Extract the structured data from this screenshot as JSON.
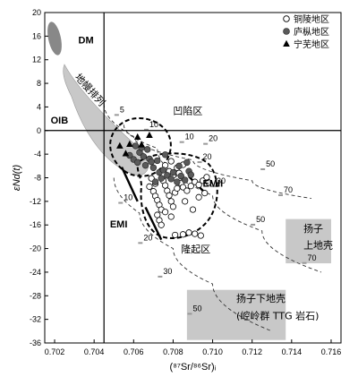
{
  "chart_data": {
    "type": "scatter",
    "xlabel": "(⁸⁷Sr/⁸⁶Sr)ᵢ",
    "ylabel": "εNd(t)",
    "xlim": [
      0.7015,
      0.7165
    ],
    "ylim": [
      -36,
      20
    ],
    "xticks": [
      0.702,
      0.704,
      0.706,
      0.708,
      0.71,
      0.712,
      0.714,
      0.716
    ],
    "yticks": [
      20,
      16,
      12,
      8,
      4,
      0,
      -4,
      -8,
      -12,
      -16,
      -20,
      -24,
      -28,
      -32,
      -36
    ],
    "grid": false,
    "legend_placement": "top-right",
    "legend": [
      {
        "name": "铜陵地区",
        "marker": "open-circle"
      },
      {
        "name": "庐枞地区",
        "marker": "filled-circle"
      },
      {
        "name": "宁芜地区",
        "marker": "filled-triangle"
      }
    ],
    "reference_lines": [
      {
        "axis": "x",
        "value": 0.7045
      },
      {
        "axis": "y",
        "value": 0
      }
    ],
    "series": [
      {
        "name": "铜陵地区",
        "marker": "open-circle",
        "color": "#ffffff",
        "points": [
          [
            0.7068,
            -9.5
          ],
          [
            0.707,
            -10.3
          ],
          [
            0.7071,
            -11.1
          ],
          [
            0.7072,
            -11.8
          ],
          [
            0.7073,
            -12.6
          ],
          [
            0.7074,
            -13.4
          ],
          [
            0.7072,
            -14.3
          ],
          [
            0.7073,
            -15.2
          ],
          [
            0.7074,
            -16.0
          ],
          [
            0.7071,
            -9.0
          ],
          [
            0.7075,
            -8.5
          ],
          [
            0.7076,
            -9.3
          ],
          [
            0.7077,
            -10.2
          ],
          [
            0.7078,
            -11.0
          ],
          [
            0.7079,
            -12.0
          ],
          [
            0.708,
            -12.9
          ],
          [
            0.7081,
            -10.5
          ],
          [
            0.7082,
            -9.8
          ],
          [
            0.7084,
            -8.9
          ],
          [
            0.7085,
            -9.6
          ],
          [
            0.7087,
            -10.2
          ],
          [
            0.7089,
            -9.4
          ],
          [
            0.7091,
            -8.7
          ],
          [
            0.7093,
            -9.2
          ],
          [
            0.7095,
            -8.5
          ],
          [
            0.7097,
            -7.9
          ],
          [
            0.7098,
            -8.8
          ],
          [
            0.7086,
            -12.0
          ],
          [
            0.7078,
            -6.9
          ],
          [
            0.708,
            -7.6
          ],
          [
            0.7083,
            -7.2
          ],
          [
            0.7076,
            -5.9
          ],
          [
            0.7079,
            -5.2
          ],
          [
            0.7082,
            -6.3
          ],
          [
            0.7085,
            -5.8
          ],
          [
            0.7081,
            -17.7
          ],
          [
            0.7085,
            -17.6
          ],
          [
            0.7088,
            -17.3
          ],
          [
            0.7091,
            -17.5
          ],
          [
            0.7094,
            -17.8
          ],
          [
            0.7076,
            -13.8
          ],
          [
            0.7079,
            -14.6
          ],
          [
            0.7069,
            -8.1
          ],
          [
            0.7093,
            -11.3
          ],
          [
            0.7096,
            -10.6
          ],
          [
            0.709,
            -13.4
          ]
        ]
      },
      {
        "name": "庐枞地区",
        "marker": "filled-circle",
        "color": "#5a5a5a",
        "points": [
          [
            0.7058,
            -4.2
          ],
          [
            0.706,
            -4.9
          ],
          [
            0.7062,
            -5.4
          ],
          [
            0.7063,
            -3.7
          ],
          [
            0.7065,
            -4.4
          ],
          [
            0.7066,
            -5.9
          ],
          [
            0.7068,
            -4.8
          ],
          [
            0.707,
            -6.3
          ],
          [
            0.7072,
            -5.1
          ],
          [
            0.7073,
            -7.1
          ],
          [
            0.7075,
            -6.7
          ],
          [
            0.7077,
            -7.6
          ],
          [
            0.7079,
            -8.2
          ],
          [
            0.708,
            -7.1
          ],
          [
            0.7082,
            -8.7
          ],
          [
            0.7084,
            -7.7
          ],
          [
            0.7086,
            -8.4
          ],
          [
            0.7088,
            -6.9
          ],
          [
            0.7089,
            -7.5
          ],
          [
            0.7071,
            -8.7
          ],
          [
            0.7074,
            -8.1
          ],
          [
            0.7061,
            -2.6
          ],
          [
            0.7064,
            -2.9
          ],
          [
            0.7067,
            -3.2
          ],
          [
            0.7076,
            -4.1
          ],
          [
            0.7069,
            -5.3
          ],
          [
            0.7083,
            -6.0
          ],
          [
            0.7087,
            -5.4
          ]
        ]
      },
      {
        "name": "宁芜地区",
        "marker": "filled-triangle",
        "color": "#000000",
        "points": [
          [
            0.7053,
            -2.6
          ],
          [
            0.7056,
            -3.9
          ],
          [
            0.7058,
            -2.3
          ],
          [
            0.7062,
            -1.1
          ],
          [
            0.7064,
            -2.4
          ],
          [
            0.7068,
            -0.8
          ]
        ]
      }
    ],
    "mixing_curves": [
      {
        "name": "EMII",
        "points": [
          [
            0.7045,
            4.5
          ],
          [
            0.706,
            -1
          ],
          [
            0.709,
            -5
          ],
          [
            0.712,
            -8.5
          ],
          [
            0.715,
            -11.5
          ]
        ],
        "labels": [
          {
            "text": "5",
            "at": [
              0.7053,
              3.1
            ]
          },
          {
            "text": "10",
            "at": [
              0.7068,
              0.6
            ]
          },
          {
            "text": "20",
            "at": [
              0.7098,
              -1.8
            ]
          },
          {
            "text": "50",
            "at": [
              0.7127,
              -6.1
            ]
          },
          {
            "text": "70",
            "at": [
              0.7136,
              -10.5
            ]
          }
        ]
      },
      {
        "name": "",
        "points": [
          [
            0.7055,
            1.0
          ],
          [
            0.7072,
            -3
          ],
          [
            0.71,
            -11
          ],
          [
            0.7125,
            -17
          ],
          [
            0.7155,
            -24
          ]
        ],
        "labels": [
          {
            "text": "10",
            "at": [
              0.7086,
              -1.5
            ]
          },
          {
            "text": "20",
            "at": [
              0.7095,
              -4.9
            ]
          },
          {
            "text": "30",
            "at": [
              0.7102,
              -9.0
            ]
          },
          {
            "text": "50",
            "at": [
              0.7122,
              -15.5
            ]
          },
          {
            "text": "70",
            "at": [
              0.7148,
              -22.0
            ]
          }
        ]
      },
      {
        "name": "EMI",
        "points": [
          [
            0.705,
            -8
          ],
          [
            0.7063,
            -14
          ],
          [
            0.708,
            -20
          ],
          [
            0.71,
            -26
          ],
          [
            0.713,
            -34
          ]
        ],
        "labels": [
          {
            "text": "10",
            "at": [
              0.7055,
              -11.8
            ]
          },
          {
            "text": "20",
            "at": [
              0.7065,
              -18.6
            ]
          },
          {
            "text": "30",
            "at": [
              0.7075,
              -24.3
            ]
          },
          {
            "text": "50",
            "at": [
              0.709,
              -30.6
            ]
          }
        ]
      }
    ],
    "annotations": [
      {
        "text": "DM",
        "at": [
          0.7032,
          14.8
        ]
      },
      {
        "text": "地幔排列",
        "at": [
          0.703,
          9.0
        ],
        "rotate": 48
      },
      {
        "text": "OIB",
        "at": [
          0.7018,
          1.2
        ]
      },
      {
        "text": "凹陷区",
        "at": [
          0.708,
          2.8
        ]
      },
      {
        "text": "EMII",
        "at": [
          0.7095,
          -9.5
        ]
      },
      {
        "text": "EMI",
        "at": [
          0.7048,
          -16.4
        ]
      },
      {
        "text": "隆起区",
        "at": [
          0.7084,
          -20.7
        ]
      },
      {
        "text": "扬子",
        "at": [
          0.7146,
          -17.2
        ]
      },
      {
        "text": "上地壳",
        "at": [
          0.7146,
          -20.0
        ]
      },
      {
        "text": "扬子下地壳",
        "at": [
          0.7112,
          -29.0
        ]
      },
      {
        "text": "(崆岭群 TTG 岩石)",
        "at": [
          0.7112,
          -32.0
        ]
      }
    ],
    "regions": [
      {
        "name": "DM",
        "shape": "ellipse",
        "color": "#888888"
      },
      {
        "name": "OIB / 地幔排列",
        "shape": "band",
        "color": "#c8c8c8"
      },
      {
        "name": "扬子上地壳",
        "shape": "box",
        "xrange": [
          0.7137,
          0.716
        ],
        "yrange": [
          -22.5,
          -15
        ],
        "color": "#c8c8c8"
      },
      {
        "name": "扬子下地壳",
        "shape": "box",
        "xrange": [
          0.7087,
          0.7137
        ],
        "yrange": [
          -35.5,
          -27
        ],
        "color": "#c8c8c8"
      },
      {
        "name": "凹陷区",
        "shape": "dashed-outline"
      },
      {
        "name": "隆起区",
        "shape": "dashed-outline"
      }
    ]
  }
}
